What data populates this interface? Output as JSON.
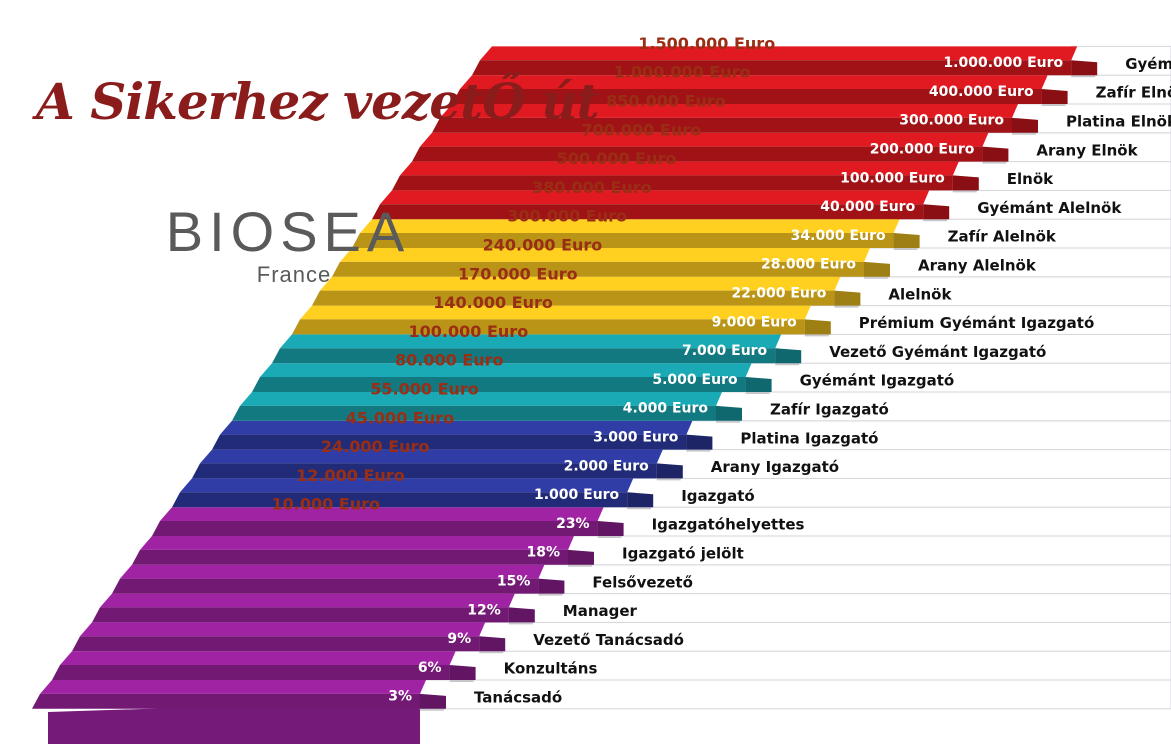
{
  "title": "A Sikerhez vezetŐ út",
  "brand": {
    "name": "BIOSEA",
    "sub": "France"
  },
  "colors": {
    "purple": "#8b1e8e",
    "blue": "#2a3591",
    "teal": "#16949d",
    "gold": "#e2b51c",
    "red": "#c4161c",
    "left_label": "#9a2e14",
    "riser_label": "#111111"
  },
  "steps": [
    {
      "rank": "Tanácsadó",
      "value": "3%",
      "color": "purple",
      "left": ""
    },
    {
      "rank": "Konzultáns",
      "value": "6%",
      "color": "purple",
      "left": ""
    },
    {
      "rank": "Vezető Tanácsadó",
      "value": "9%",
      "color": "purple",
      "left": ""
    },
    {
      "rank": "Manager",
      "value": "12%",
      "color": "purple",
      "left": ""
    },
    {
      "rank": "Felsővezető",
      "value": "15%",
      "color": "purple",
      "left": ""
    },
    {
      "rank": "Igazgató jelölt",
      "value": "18%",
      "color": "purple",
      "left": ""
    },
    {
      "rank": "Igazgatóhelyettes",
      "value": "23%",
      "color": "purple",
      "left": "10.000 Euro"
    },
    {
      "rank": "Igazgató",
      "value": "1.000 Euro",
      "color": "blue",
      "left": "12.000 Euro"
    },
    {
      "rank": "Arany Igazgató",
      "value": "2.000 Euro",
      "color": "blue",
      "left": "24.000 Euro"
    },
    {
      "rank": "Platina Igazgató",
      "value": "3.000 Euro",
      "color": "blue",
      "left": "45.000 Euro"
    },
    {
      "rank": "Zafír Igazgató",
      "value": "4.000 Euro",
      "color": "teal",
      "left": "55.000 Euro"
    },
    {
      "rank": "Gyémánt Igazgató",
      "value": "5.000 Euro",
      "color": "teal",
      "left": "80.000 Euro"
    },
    {
      "rank": "Vezető Gyémánt Igazgató",
      "value": "7.000 Euro",
      "color": "teal",
      "left": "100.000 Euro"
    },
    {
      "rank": "Prémium Gyémánt Igazgató",
      "value": "9.000 Euro",
      "color": "gold",
      "left": "140.000 Euro"
    },
    {
      "rank": "Alelnök",
      "value": "22.000 Euro",
      "color": "gold",
      "left": "170.000 Euro"
    },
    {
      "rank": "Arany Alelnök",
      "value": "28.000 Euro",
      "color": "gold",
      "left": "240.000 Euro"
    },
    {
      "rank": "Zafír Alelnök",
      "value": "34.000 Euro",
      "color": "gold",
      "left": "300.000 Euro"
    },
    {
      "rank": "Gyémánt Alelnök",
      "value": "40.000 Euro",
      "color": "red",
      "left": "380.000 Euro"
    },
    {
      "rank": "Elnök",
      "value": "100.000 Euro",
      "color": "red",
      "left": "500.000 Euro"
    },
    {
      "rank": "Arany Elnök",
      "value": "200.000 Euro",
      "color": "red",
      "left": "700.000 Euro"
    },
    {
      "rank": "Platina Elnök",
      "value": "300.000 Euro",
      "color": "red",
      "left": "850.000 Euro"
    },
    {
      "rank": "Zafír Elnök",
      "value": "400.000 Euro",
      "color": "red",
      "left": "1.000.000 Euro"
    },
    {
      "rank": "Gyémánt Elnök",
      "value": "1.000.000 Euro",
      "color": "red",
      "left": "1.500.000 Euro"
    }
  ]
}
